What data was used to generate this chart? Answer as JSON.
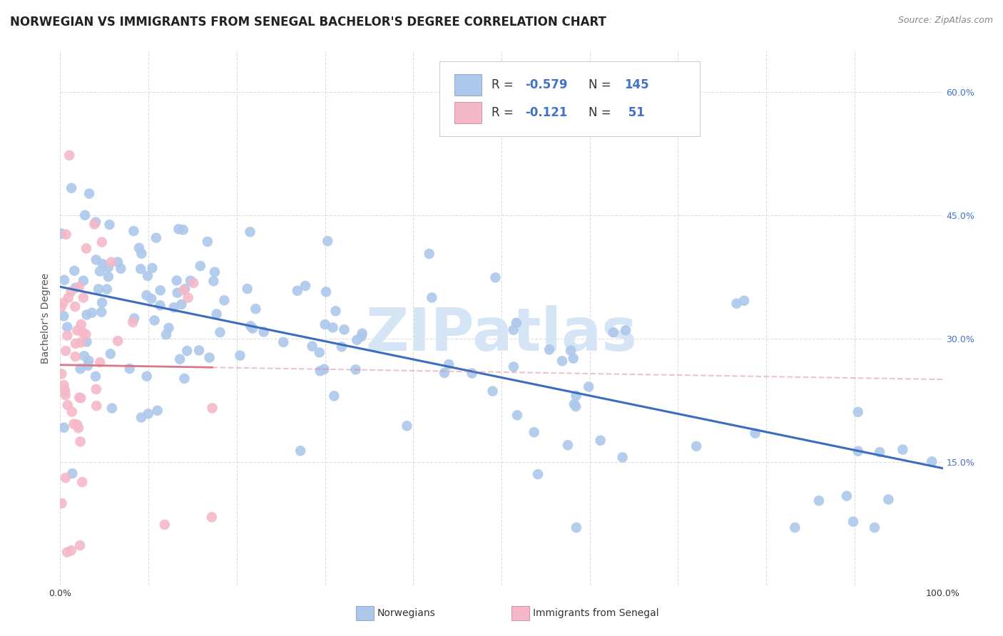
{
  "title": "NORWEGIAN VS IMMIGRANTS FROM SENEGAL BACHELOR'S DEGREE CORRELATION CHART",
  "source": "Source: ZipAtlas.com",
  "ylabel": "Bachelor's Degree",
  "norwegian_R": -0.579,
  "norwegian_N": 145,
  "senegal_R": -0.121,
  "senegal_N": 51,
  "xlim": [
    0.0,
    1.0
  ],
  "ylim": [
    0.0,
    0.65
  ],
  "yticks": [
    0.15,
    0.3,
    0.45,
    0.6
  ],
  "yticklabels": [
    "15.0%",
    "30.0%",
    "45.0%",
    "60.0%"
  ],
  "xtick_positions": [
    0.0,
    0.1,
    0.2,
    0.3,
    0.4,
    0.5,
    0.6,
    0.7,
    0.8,
    0.9,
    1.0
  ],
  "norwegian_color": "#adc8ea",
  "senegal_color": "#f4b8c8",
  "norwegian_line_color": "#3b6dbf",
  "senegal_line_color": "#d9788a",
  "background_color": "#ffffff",
  "grid_color": "#dddddd",
  "title_fontsize": 12,
  "source_fontsize": 9,
  "legend_fontsize": 12,
  "axis_label_fontsize": 10,
  "tick_fontsize": 9,
  "watermark_color": "#d5e5f5",
  "watermark_fontsize": 60,
  "legend_text_color": "#333333",
  "legend_accent_color": "#4472c4"
}
